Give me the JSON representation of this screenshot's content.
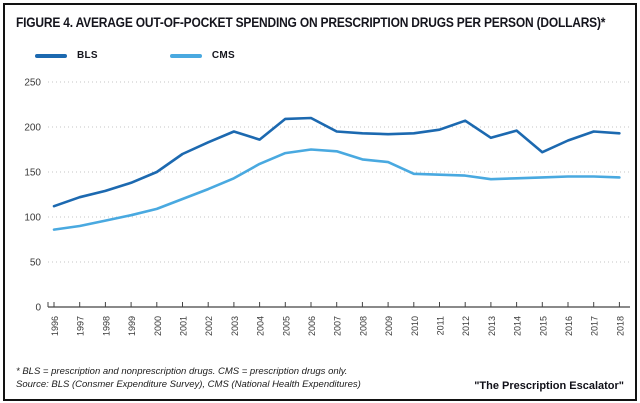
{
  "figure": {
    "title": "FIGURE 4. AVERAGE OUT-OF-POCKET SPENDING ON PRESCRIPTION DRUGS PER PERSON (DOLLARS)*",
    "footnote": "* BLS = prescription and nonprescription drugs. CMS = prescription drugs only.",
    "source": "Source: BLS (Consmer Expenditure Survey), CMS (National Health Expenditures)",
    "attribution": "\"The Prescription Escalator\""
  },
  "chart_data": {
    "type": "line",
    "title": "FIGURE 4. AVERAGE OUT-OF-POCKET SPENDING ON PRESCRIPTION DRUGS PER PERSON (DOLLARS)*",
    "x": [
      1996,
      1997,
      1998,
      1999,
      2000,
      2001,
      2002,
      2003,
      2004,
      2005,
      2006,
      2007,
      2008,
      2009,
      2010,
      2011,
      2012,
      2013,
      2014,
      2015,
      2016,
      2017,
      2018
    ],
    "series": [
      {
        "name": "BLS",
        "color": "#1c69b0",
        "values": [
          112,
          122,
          129,
          138,
          150,
          170,
          183,
          195,
          186,
          209,
          210,
          195,
          193,
          192,
          193,
          197,
          207,
          188,
          196,
          172,
          185,
          195,
          193
        ]
      },
      {
        "name": "CMS",
        "color": "#49a9e0",
        "values": [
          86,
          90,
          96,
          102,
          109,
          120,
          131,
          143,
          159,
          171,
          175,
          173,
          164,
          161,
          148,
          147,
          146,
          142,
          143,
          144,
          145,
          145,
          144
        ]
      }
    ],
    "xlabel": "",
    "ylabel": "",
    "ylim": [
      0,
      250
    ],
    "yticks": [
      0,
      50,
      100,
      150,
      200,
      250
    ],
    "grid": "horizontal-dotted",
    "legend_position": "top-left",
    "colors": {
      "grid": "#c4c4c4",
      "axis": "#444444",
      "tick_label": "#3a3a3a"
    }
  }
}
